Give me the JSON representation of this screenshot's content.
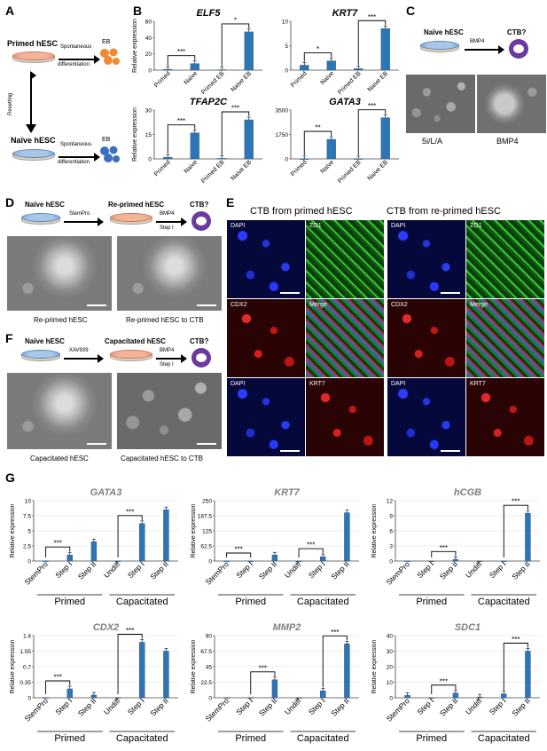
{
  "panels": {
    "A": "A",
    "B": "B",
    "C": "C",
    "D": "D",
    "E": "E",
    "F": "F",
    "G": "G"
  },
  "panel_a": {
    "primed": "Primed hESC",
    "naive": "Naïve hESC",
    "resetting": "Resetting",
    "spont1": "Spontaneous",
    "spont2": "differentiation",
    "eb": "EB"
  },
  "panel_c": {
    "naive": "Naïve hESC",
    "bmp4": "BMP4",
    "ctb": "CTB?",
    "img1": "5i/L/A",
    "img2": "BMP4"
  },
  "panel_d": {
    "naive": "Naïve hESC",
    "stempro": "StemPro",
    "reprimed": "Re-primed hESC",
    "bmp4": "BMP4",
    "step": "Step I",
    "ctb": "CTB?",
    "img1": "Re-primed hESC",
    "img2": "Re-primed hESC to CTB"
  },
  "panel_e": {
    "left_title": "CTB from primed hESC",
    "right_title": "CTB from re-primed hESC",
    "dapi": "DAPI",
    "zo1": "ZO1",
    "cdx2": "CDX2",
    "merge": "Merge",
    "krt7": "KRT7"
  },
  "panel_f": {
    "naive": "Naïve hESC",
    "xav": "XAV939",
    "capacitated": "Capacitated hESC",
    "bmp4": "BMP4",
    "step": "Step I",
    "ctb": "CTB?",
    "img1": "Capacitated hESC",
    "img2": "Capacitated hESC to CTB"
  },
  "chart_data": [
    {
      "type": "bar",
      "panel": "B",
      "title": "ELF5",
      "ylabel": "Relative expression",
      "categories": [
        "Primed",
        "Naive",
        "Primed EB",
        "Naive EB"
      ],
      "values": [
        1,
        8,
        0.5,
        47
      ],
      "ylim": [
        0,
        60
      ],
      "yticks": [
        0,
        20,
        40,
        60
      ],
      "significance": [
        {
          "from": 0,
          "to": 1,
          "label": "***"
        },
        {
          "from": 2,
          "to": 3,
          "label": "*"
        }
      ]
    },
    {
      "type": "bar",
      "panel": "B",
      "title": "KRT7",
      "ylabel": "",
      "categories": [
        "Primed",
        "Naive",
        "Primed EB",
        "Naive EB"
      ],
      "values": [
        1,
        1.9,
        0.3,
        8.5
      ],
      "ylim": [
        0,
        10
      ],
      "yticks": [
        0,
        5,
        10
      ],
      "significance": [
        {
          "from": 0,
          "to": 1,
          "label": "*"
        },
        {
          "from": 2,
          "to": 3,
          "label": "***"
        }
      ]
    },
    {
      "type": "bar",
      "panel": "B",
      "title": "TFAP2C",
      "ylabel": "Relative expression",
      "categories": [
        "Primed",
        "Naive",
        "Primed EB",
        "Naive EB"
      ],
      "values": [
        1,
        16,
        0.3,
        24
      ],
      "ylim": [
        0,
        30
      ],
      "yticks": [
        0,
        15,
        30
      ],
      "significance": [
        {
          "from": 0,
          "to": 1,
          "label": "***"
        },
        {
          "from": 2,
          "to": 3,
          "label": "***"
        }
      ]
    },
    {
      "type": "bar",
      "panel": "B",
      "title": "GATA3",
      "ylabel": "",
      "categories": [
        "Primed",
        "Naive",
        "Primed EB",
        "Naive EB"
      ],
      "values": [
        1,
        1400,
        5,
        2950
      ],
      "ylim": [
        0,
        3500
      ],
      "yticks": [
        0,
        1750,
        3500
      ],
      "significance": [
        {
          "from": 0,
          "to": 1,
          "label": "**"
        },
        {
          "from": 2,
          "to": 3,
          "label": "***"
        }
      ]
    },
    {
      "type": "bar",
      "panel": "G",
      "title": "GATA3",
      "ylabel": "Relative expression",
      "categories": [
        "StemPro",
        "Step I",
        "Step II",
        "Undiff",
        "Step I",
        "Step II"
      ],
      "groups": [
        "Primed",
        "Capacitated"
      ],
      "values": [
        0,
        1,
        3.2,
        0,
        6.2,
        8.5
      ],
      "ylim": [
        0,
        10
      ],
      "yticks": [
        0,
        2.5,
        5,
        7.5,
        10
      ],
      "significance": [
        {
          "from": 0,
          "to": 1,
          "label": "***"
        },
        {
          "from": 3,
          "to": 4,
          "label": "***"
        }
      ]
    },
    {
      "type": "bar",
      "panel": "G",
      "title": "KRT7",
      "ylabel": "Relative expression",
      "categories": [
        "StemPro",
        "Step I",
        "Step II",
        "Undiff",
        "Step I",
        "Step II"
      ],
      "groups": [
        "Primed",
        "Capacitated"
      ],
      "values": [
        0,
        0,
        25,
        0,
        18,
        200
      ],
      "ylim": [
        0,
        250
      ],
      "yticks": [
        0,
        62.5,
        125,
        187.5,
        250
      ],
      "significance": [
        {
          "from": 0,
          "to": 1,
          "label": "***"
        },
        {
          "from": 3,
          "to": 4,
          "label": "***"
        }
      ]
    },
    {
      "type": "bar",
      "panel": "G",
      "title": "hCGB",
      "ylabel": "Relative expression",
      "categories": [
        "StemPro",
        "Step I",
        "Step II",
        "Undiff",
        "Step I",
        "Step II"
      ],
      "groups": [
        "Primed",
        "Capacitated"
      ],
      "values": [
        0,
        0,
        0.3,
        0,
        0,
        9.5
      ],
      "ylim": [
        0,
        12
      ],
      "yticks": [
        0,
        3,
        6,
        9,
        12
      ],
      "significance": [
        {
          "from": 1,
          "to": 2,
          "label": "***"
        },
        {
          "from": 4,
          "to": 5,
          "label": "***"
        }
      ]
    },
    {
      "type": "bar",
      "panel": "G",
      "title": "CDX2",
      "ylabel": "Relative expression",
      "categories": [
        "StemPro",
        "Step I",
        "Step II",
        "Undiff",
        "Step I",
        "Step II"
      ],
      "groups": [
        "Primed",
        "Capacitated"
      ],
      "values": [
        0,
        0.2,
        0.06,
        0,
        1.25,
        1.05
      ],
      "ylim": [
        0,
        1.4
      ],
      "yticks": [
        0,
        0.35,
        0.7,
        1.05,
        1.4
      ],
      "significance": [
        {
          "from": 0,
          "to": 1,
          "label": "***"
        },
        {
          "from": 3,
          "to": 4,
          "label": "***"
        }
      ]
    },
    {
      "type": "bar",
      "panel": "G",
      "title": "MMP2",
      "ylabel": "Relative expression",
      "categories": [
        "StemPro",
        "Step I",
        "Step II",
        "Undiff",
        "Step I",
        "Step II"
      ],
      "groups": [
        "Primed",
        "Capacitated"
      ],
      "values": [
        0,
        0,
        26,
        0,
        10,
        78
      ],
      "ylim": [
        0,
        90
      ],
      "yticks": [
        0,
        22.5,
        45,
        67.5,
        90
      ],
      "significance": [
        {
          "from": 1,
          "to": 2,
          "label": "***"
        },
        {
          "from": 4,
          "to": 5,
          "label": "***"
        }
      ]
    },
    {
      "type": "bar",
      "panel": "G",
      "title": "SDC1",
      "ylabel": "Relative expression",
      "categories": [
        "StemPro",
        "Step I",
        "Step II",
        "Undiff",
        "Step I",
        "Step II"
      ],
      "groups": [
        "Primed",
        "Capacitated"
      ],
      "values": [
        1.5,
        0,
        3,
        0.5,
        2.5,
        30
      ],
      "ylim": [
        0,
        40
      ],
      "yticks": [
        0,
        10,
        20,
        30,
        40
      ],
      "significance": [
        {
          "from": 1,
          "to": 2,
          "label": "***"
        },
        {
          "from": 4,
          "to": 5,
          "label": "***"
        }
      ]
    }
  ]
}
